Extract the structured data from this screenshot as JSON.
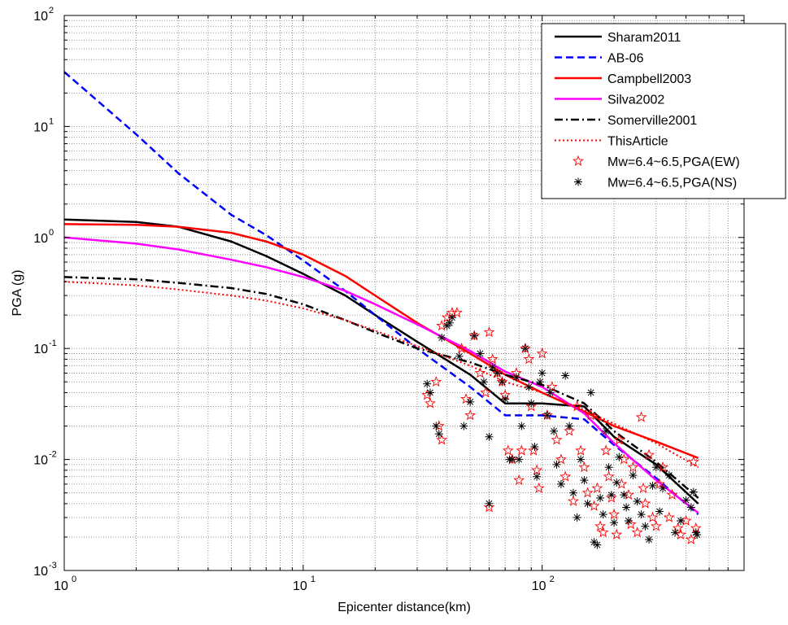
{
  "chart_data": {
    "type": "line",
    "title": "",
    "xlabel": "Epicenter distance(km)",
    "ylabel": "PGA  (g)",
    "xscale": "log",
    "yscale": "log",
    "xlim": [
      1,
      700
    ],
    "ylim": [
      0.001,
      100
    ],
    "grid": true,
    "grid_style": "dotted",
    "legend_position": "top-right",
    "x_ticks": [
      {
        "value": 1,
        "base": "10",
        "exp": "0"
      },
      {
        "value": 10,
        "base": "10",
        "exp": "1"
      },
      {
        "value": 100,
        "base": "10",
        "exp": "2"
      }
    ],
    "y_ticks": [
      {
        "value": 0.001,
        "base": "10",
        "exp": "-3"
      },
      {
        "value": 0.01,
        "base": "10",
        "exp": "-2"
      },
      {
        "value": 0.1,
        "base": "10",
        "exp": "-1"
      },
      {
        "value": 1,
        "base": "10",
        "exp": "0"
      },
      {
        "value": 10,
        "base": "10",
        "exp": "1"
      },
      {
        "value": 100,
        "base": "10",
        "exp": "2"
      }
    ],
    "series": [
      {
        "name": "Sharam2011",
        "kind": "line",
        "color": "#000000",
        "dash": "solid",
        "width": 2.5,
        "points": [
          [
            1,
            1.45
          ],
          [
            2,
            1.38
          ],
          [
            3,
            1.25
          ],
          [
            5,
            0.92
          ],
          [
            7,
            0.68
          ],
          [
            10,
            0.47
          ],
          [
            15,
            0.3
          ],
          [
            20,
            0.2
          ],
          [
            30,
            0.115
          ],
          [
            50,
            0.058
          ],
          [
            70,
            0.032
          ],
          [
            100,
            0.032
          ],
          [
            150,
            0.03
          ],
          [
            200,
            0.016
          ],
          [
            300,
            0.009
          ],
          [
            450,
            0.004
          ]
        ]
      },
      {
        "name": "AB-06",
        "kind": "line",
        "color": "#0000ff",
        "dash": "dashed",
        "width": 2.5,
        "points": [
          [
            1,
            31
          ],
          [
            2,
            8.5
          ],
          [
            3,
            3.8
          ],
          [
            5,
            1.6
          ],
          [
            7,
            1.05
          ],
          [
            10,
            0.62
          ],
          [
            15,
            0.33
          ],
          [
            20,
            0.2
          ],
          [
            30,
            0.1
          ],
          [
            50,
            0.045
          ],
          [
            70,
            0.025
          ],
          [
            100,
            0.025
          ],
          [
            150,
            0.023
          ],
          [
            200,
            0.0135
          ],
          [
            300,
            0.0068
          ],
          [
            450,
            0.0032
          ]
        ]
      },
      {
        "name": "Campbell2003",
        "kind": "line",
        "color": "#ff0000",
        "dash": "solid",
        "width": 2.5,
        "points": [
          [
            1,
            1.32
          ],
          [
            2,
            1.3
          ],
          [
            3,
            1.25
          ],
          [
            5,
            1.1
          ],
          [
            7,
            0.92
          ],
          [
            10,
            0.7
          ],
          [
            15,
            0.45
          ],
          [
            20,
            0.3
          ],
          [
            30,
            0.17
          ],
          [
            50,
            0.09
          ],
          [
            70,
            0.058
          ],
          [
            100,
            0.04
          ],
          [
            150,
            0.027
          ],
          [
            200,
            0.02
          ],
          [
            300,
            0.0145
          ],
          [
            450,
            0.0103
          ]
        ]
      },
      {
        "name": "Silva2002",
        "kind": "line",
        "color": "#ff00ff",
        "dash": "solid",
        "width": 2.5,
        "points": [
          [
            1,
            1.0
          ],
          [
            2,
            0.88
          ],
          [
            3,
            0.78
          ],
          [
            5,
            0.63
          ],
          [
            7,
            0.54
          ],
          [
            10,
            0.44
          ],
          [
            15,
            0.33
          ],
          [
            20,
            0.25
          ],
          [
            30,
            0.165
          ],
          [
            50,
            0.095
          ],
          [
            70,
            0.062
          ],
          [
            100,
            0.045
          ],
          [
            150,
            0.026
          ],
          [
            200,
            0.014
          ],
          [
            300,
            0.0065
          ],
          [
            450,
            0.0033
          ]
        ]
      },
      {
        "name": "Somerville2001",
        "kind": "line",
        "color": "#000000",
        "dash": "dashdot",
        "width": 2.5,
        "points": [
          [
            1,
            0.44
          ],
          [
            2,
            0.42
          ],
          [
            3,
            0.39
          ],
          [
            5,
            0.35
          ],
          [
            7,
            0.31
          ],
          [
            10,
            0.25
          ],
          [
            15,
            0.18
          ],
          [
            20,
            0.14
          ],
          [
            30,
            0.1
          ],
          [
            50,
            0.075
          ],
          [
            70,
            0.058
          ],
          [
            100,
            0.047
          ],
          [
            150,
            0.032
          ],
          [
            200,
            0.018
          ],
          [
            300,
            0.0095
          ],
          [
            450,
            0.0045
          ]
        ]
      },
      {
        "name": "ThisArticle",
        "kind": "line",
        "color": "#ff0000",
        "dash": "dotted",
        "width": 2,
        "points": [
          [
            1,
            0.4
          ],
          [
            2,
            0.37
          ],
          [
            3,
            0.34
          ],
          [
            5,
            0.3
          ],
          [
            7,
            0.27
          ],
          [
            10,
            0.23
          ],
          [
            15,
            0.18
          ],
          [
            20,
            0.145
          ],
          [
            30,
            0.105
          ],
          [
            50,
            0.07
          ],
          [
            70,
            0.05
          ],
          [
            100,
            0.04
          ],
          [
            150,
            0.028
          ],
          [
            200,
            0.021
          ],
          [
            300,
            0.014
          ],
          [
            450,
            0.0085
          ]
        ]
      },
      {
        "name": "Mw=6.4~6.5,PGA(EW)",
        "kind": "scatter",
        "marker": "star",
        "color": "#ff0000",
        "points": [
          [
            33,
            0.038
          ],
          [
            34,
            0.032
          ],
          [
            36,
            0.05
          ],
          [
            37,
            0.02
          ],
          [
            38,
            0.015
          ],
          [
            38,
            0.16
          ],
          [
            40,
            0.19
          ],
          [
            42,
            0.21
          ],
          [
            44,
            0.21
          ],
          [
            46,
            0.1
          ],
          [
            48,
            0.035
          ],
          [
            50,
            0.025
          ],
          [
            52,
            0.13
          ],
          [
            55,
            0.06
          ],
          [
            58,
            0.04
          ],
          [
            60,
            0.14
          ],
          [
            60,
            0.0037
          ],
          [
            62,
            0.08
          ],
          [
            65,
            0.06
          ],
          [
            68,
            0.05
          ],
          [
            70,
            0.038
          ],
          [
            72,
            0.012
          ],
          [
            75,
            0.01
          ],
          [
            78,
            0.06
          ],
          [
            80,
            0.0065
          ],
          [
            82,
            0.012
          ],
          [
            85,
            0.1
          ],
          [
            88,
            0.08
          ],
          [
            90,
            0.03
          ],
          [
            92,
            0.012
          ],
          [
            95,
            0.008
          ],
          [
            97,
            0.0055
          ],
          [
            100,
            0.09
          ],
          [
            105,
            0.025
          ],
          [
            110,
            0.045
          ],
          [
            115,
            0.015
          ],
          [
            120,
            0.01
          ],
          [
            125,
            0.007
          ],
          [
            130,
            0.018
          ],
          [
            135,
            0.0042
          ],
          [
            140,
            0.03
          ],
          [
            145,
            0.012
          ],
          [
            150,
            0.0085
          ],
          [
            155,
            0.005
          ],
          [
            160,
            0.025
          ],
          [
            165,
            0.0038
          ],
          [
            170,
            0.0055
          ],
          [
            175,
            0.0025
          ],
          [
            180,
            0.0022
          ],
          [
            185,
            0.012
          ],
          [
            190,
            0.007
          ],
          [
            195,
            0.0045
          ],
          [
            200,
            0.0032
          ],
          [
            205,
            0.0021
          ],
          [
            210,
            0.015
          ],
          [
            215,
            0.006
          ],
          [
            220,
            0.01
          ],
          [
            230,
            0.0048
          ],
          [
            235,
            0.0026
          ],
          [
            240,
            0.0085
          ],
          [
            250,
            0.0022
          ],
          [
            260,
            0.024
          ],
          [
            265,
            0.0055
          ],
          [
            270,
            0.004
          ],
          [
            280,
            0.011
          ],
          [
            290,
            0.003
          ],
          [
            300,
            0.0025
          ],
          [
            310,
            0.006
          ],
          [
            320,
            0.0085
          ],
          [
            340,
            0.003
          ],
          [
            350,
            0.0048
          ],
          [
            370,
            0.0024
          ],
          [
            380,
            0.0021
          ],
          [
            400,
            0.0028
          ],
          [
            420,
            0.0019
          ],
          [
            430,
            0.0095
          ],
          [
            440,
            0.0024
          ]
        ]
      },
      {
        "name": "Mw=6.4~6.5,PGA(NS)",
        "kind": "scatter",
        "marker": "asterisk",
        "color": "#000000",
        "points": [
          [
            33,
            0.048
          ],
          [
            34,
            0.04
          ],
          [
            36,
            0.02
          ],
          [
            37,
            0.017
          ],
          [
            38,
            0.125
          ],
          [
            40,
            0.16
          ],
          [
            41,
            0.17
          ],
          [
            42,
            0.19
          ],
          [
            45,
            0.085
          ],
          [
            47,
            0.02
          ],
          [
            50,
            0.033
          ],
          [
            52,
            0.13
          ],
          [
            55,
            0.09
          ],
          [
            57,
            0.05
          ],
          [
            60,
            0.016
          ],
          [
            60,
            0.004
          ],
          [
            62,
            0.068
          ],
          [
            65,
            0.06
          ],
          [
            68,
            0.05
          ],
          [
            70,
            0.035
          ],
          [
            73,
            0.01
          ],
          [
            75,
            0.01
          ],
          [
            78,
            0.055
          ],
          [
            80,
            0.01
          ],
          [
            82,
            0.02
          ],
          [
            85,
            0.1
          ],
          [
            88,
            0.045
          ],
          [
            90,
            0.032
          ],
          [
            93,
            0.013
          ],
          [
            95,
            0.007
          ],
          [
            98,
            0.05
          ],
          [
            100,
            0.06
          ],
          [
            105,
            0.025
          ],
          [
            108,
            0.04
          ],
          [
            112,
            0.018
          ],
          [
            115,
            0.009
          ],
          [
            120,
            0.006
          ],
          [
            125,
            0.057
          ],
          [
            130,
            0.02
          ],
          [
            135,
            0.005
          ],
          [
            140,
            0.003
          ],
          [
            145,
            0.01
          ],
          [
            150,
            0.0065
          ],
          [
            155,
            0.004
          ],
          [
            160,
            0.04
          ],
          [
            165,
            0.0018
          ],
          [
            170,
            0.0017
          ],
          [
            175,
            0.0045
          ],
          [
            180,
            0.0032
          ],
          [
            185,
            0.018
          ],
          [
            190,
            0.0085
          ],
          [
            195,
            0.0048
          ],
          [
            200,
            0.0027
          ],
          [
            205,
            0.0062
          ],
          [
            210,
            0.0105
          ],
          [
            220,
            0.0048
          ],
          [
            225,
            0.0037
          ],
          [
            230,
            0.0028
          ],
          [
            240,
            0.0072
          ],
          [
            250,
            0.0042
          ],
          [
            260,
            0.0032
          ],
          [
            270,
            0.0025
          ],
          [
            280,
            0.0019
          ],
          [
            290,
            0.0058
          ],
          [
            300,
            0.0085
          ],
          [
            310,
            0.0034
          ],
          [
            320,
            0.0055
          ],
          [
            340,
            0.0072
          ],
          [
            360,
            0.0022
          ],
          [
            380,
            0.0028
          ],
          [
            400,
            0.0043
          ],
          [
            420,
            0.0037
          ],
          [
            430,
            0.0051
          ],
          [
            440,
            0.0022
          ],
          [
            445,
            0.0021
          ]
        ]
      }
    ]
  }
}
